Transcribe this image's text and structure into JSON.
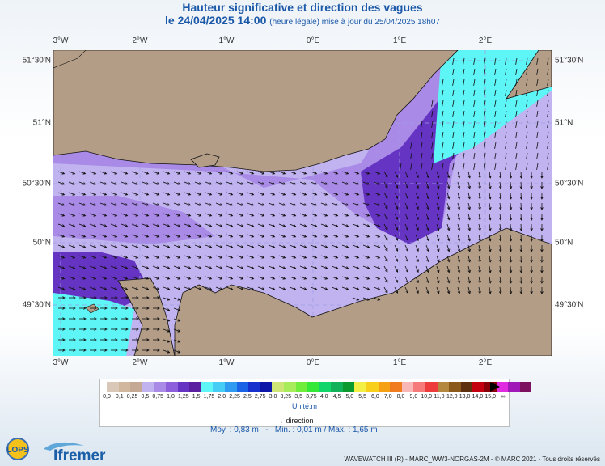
{
  "title": "Hauteur significative et direction des vagues",
  "subtitle_date": "le 24/04/2025 14:00",
  "subtitle_note": "(heure légale) mise à jour du 25/04/2025 18h07",
  "lon_labels": [
    "3°W",
    "2°W",
    "1°W",
    "0°E",
    "1°E",
    "2°E"
  ],
  "lat_labels": [
    "51°30'N",
    "51°N",
    "50°30'N",
    "50°N",
    "49°30'N"
  ],
  "legend": {
    "colors": [
      "#d9c8b8",
      "#d2b79f",
      "#c6a994",
      "#c0b3f0",
      "#a98ae6",
      "#8e5fdc",
      "#6634c3",
      "#5a1fa0",
      "#5ef5f6",
      "#46cdf5",
      "#2e9af0",
      "#1a62e6",
      "#1530cc",
      "#0c16a8",
      "#cde676",
      "#a8ec5c",
      "#70ec3b",
      "#35e838",
      "#12d66a",
      "#11b25a",
      "#0c9a2f",
      "#f4ef44",
      "#f8cf1a",
      "#f6a013",
      "#f17c20",
      "#f8b6b6",
      "#f67a7a",
      "#ee3b3b",
      "#b4883f",
      "#8b5a1a",
      "#5d3010",
      "#c40010",
      "#8a0008",
      "#e12be0",
      "#a018b8",
      "#7e1060"
    ],
    "tick_labels": [
      "0,0",
      "0,1",
      "0,25",
      "0,5",
      "0,75",
      "1,0",
      "1,25",
      "1,5",
      "1,75",
      "2,0",
      "2,25",
      "2,5",
      "2,75",
      "3,0",
      "3,25",
      "3,5",
      "3,75",
      "4,0",
      "4,5",
      "5,0",
      "5,5",
      "6,0",
      "7,0",
      "8,0",
      "9,0",
      "10,0",
      "11,0",
      "12,0",
      "13,0",
      "14,0",
      "15,0",
      "∞"
    ],
    "unit": "Unité:m",
    "direction_label": "direction"
  },
  "stats": {
    "moy": "Moy. : 0,83 m",
    "sep": "-",
    "minmax": "Min. : 0,01 m / Max. : 1,65 m"
  },
  "footer": "WAVEWATCH III (R) - MARC_WW3-NORGAS-2M - © MARC 2021 - Tous droits réservés",
  "logos": {
    "lops": "LOPS",
    "ifremer": "Ifremer"
  },
  "colors": {
    "land": "#b39d87",
    "title": "#1b58a8",
    "grid": "#a0a0e0"
  }
}
